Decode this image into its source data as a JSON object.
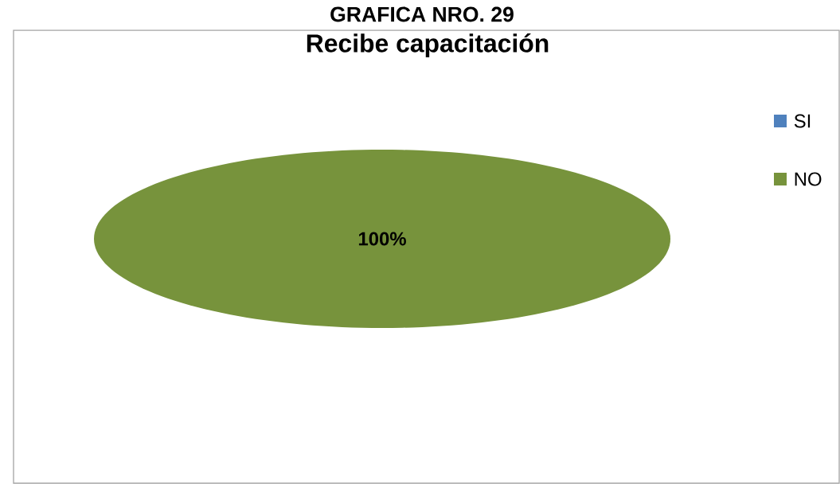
{
  "chart_data": {
    "type": "pie",
    "title": "Recibe capacitación",
    "annotations": [
      "GRAFICA NRO. 29"
    ],
    "categories": [
      "SI",
      "NO"
    ],
    "values": [
      0,
      100
    ],
    "colors": [
      "#4f81bd",
      "#77933c"
    ],
    "value_labels": [
      null,
      "100%"
    ],
    "legend": "right"
  }
}
